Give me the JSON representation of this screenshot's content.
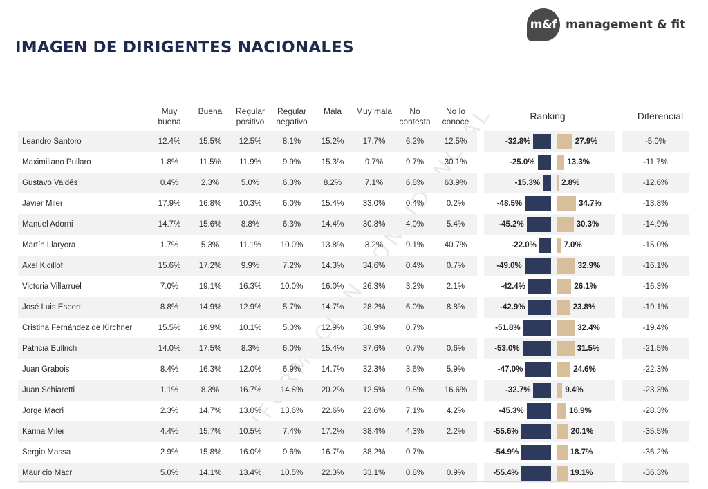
{
  "brand": {
    "mark": "m&f",
    "name": "management & fit"
  },
  "title": "IMAGEN DE DIRIGENTES NACIONALES",
  "watermark": "INFORMACIÓN CONFIDENCIAL",
  "colors": {
    "negative_bar": "#2e3a5c",
    "positive_bar": "#d8bf9b",
    "title": "#1f2a4f"
  },
  "columns": [
    "Muy buena",
    "Buena",
    "Regular positivo",
    "Regular negativo",
    "Mala",
    "Muy mala",
    "No contesta",
    "No lo conoce"
  ],
  "section_headers": {
    "ranking": "Ranking",
    "diferencial": "Diferencial"
  },
  "chart_data": {
    "type": "table",
    "title": "IMAGEN DE DIRIGENTES NACIONALES",
    "columns": [
      "Muy buena",
      "Buena",
      "Regular positivo",
      "Regular negativo",
      "Mala",
      "Muy mala",
      "No contesta",
      "No lo conoce",
      "Ranking negativo",
      "Ranking positivo",
      "Diferencial"
    ],
    "rows": [
      {
        "name": "Leandro Santoro",
        "values": [
          "12.4%",
          "15.5%",
          "12.5%",
          "8.1%",
          "15.2%",
          "17.7%",
          "6.2%",
          "12.5%"
        ],
        "neg": "-32.8%",
        "pos": "27.9%",
        "neg_val": -32.8,
        "pos_val": 27.9,
        "diff": "-5.0%"
      },
      {
        "name": "Maximiliano Pullaro",
        "values": [
          "1.8%",
          "11.5%",
          "11.9%",
          "9.9%",
          "15.3%",
          "9.7%",
          "9.7%",
          "30.1%"
        ],
        "neg": "-25.0%",
        "pos": "13.3%",
        "neg_val": -25.0,
        "pos_val": 13.3,
        "diff": "-11.7%"
      },
      {
        "name": "Gustavo Valdés",
        "values": [
          "0.4%",
          "2.3%",
          "5.0%",
          "6.3%",
          "8.2%",
          "7.1%",
          "6.8%",
          "63.9%"
        ],
        "neg": "-15.3%",
        "pos": "2.8%",
        "neg_val": -15.3,
        "pos_val": 2.8,
        "diff": "-12.6%"
      },
      {
        "name": "Javier Milei",
        "values": [
          "17.9%",
          "16.8%",
          "10.3%",
          "6.0%",
          "15.4%",
          "33.0%",
          "0.4%",
          "0.2%"
        ],
        "neg": "-48.5%",
        "pos": "34.7%",
        "neg_val": -48.5,
        "pos_val": 34.7,
        "diff": "-13.8%"
      },
      {
        "name": "Manuel Adorni",
        "values": [
          "14.7%",
          "15.6%",
          "8.8%",
          "6.3%",
          "14.4%",
          "30.8%",
          "4.0%",
          "5.4%"
        ],
        "neg": "-45.2%",
        "pos": "30.3%",
        "neg_val": -45.2,
        "pos_val": 30.3,
        "diff": "-14.9%"
      },
      {
        "name": "Martín Llaryora",
        "values": [
          "1.7%",
          "5.3%",
          "11.1%",
          "10.0%",
          "13.8%",
          "8.2%",
          "9.1%",
          "40.7%"
        ],
        "neg": "-22.0%",
        "pos": "7.0%",
        "neg_val": -22.0,
        "pos_val": 7.0,
        "diff": "-15.0%"
      },
      {
        "name": "Axel Kicillof",
        "values": [
          "15.6%",
          "17.2%",
          "9.9%",
          "7.2%",
          "14.3%",
          "34.6%",
          "0.4%",
          "0.7%"
        ],
        "neg": "-49.0%",
        "pos": "32.9%",
        "neg_val": -49.0,
        "pos_val": 32.9,
        "diff": "-16.1%"
      },
      {
        "name": "Victoria Villarruel",
        "values": [
          "7.0%",
          "19.1%",
          "16.3%",
          "10.0%",
          "16.0%",
          "26.3%",
          "3.2%",
          "2.1%"
        ],
        "neg": "-42.4%",
        "pos": "26.1%",
        "neg_val": -42.4,
        "pos_val": 26.1,
        "diff": "-16.3%"
      },
      {
        "name": "José Luis Espert",
        "values": [
          "8.8%",
          "14.9%",
          "12.9%",
          "5.7%",
          "14.7%",
          "28.2%",
          "6.0%",
          "8.8%"
        ],
        "neg": "-42.9%",
        "pos": "23.8%",
        "neg_val": -42.9,
        "pos_val": 23.8,
        "diff": "-19.1%"
      },
      {
        "name": "Cristina Fernández de Kirchner",
        "values": [
          "15.5%",
          "16.9%",
          "10.1%",
          "5.0%",
          "12.9%",
          "38.9%",
          "0.7%",
          ""
        ],
        "neg": "-51.8%",
        "pos": "32.4%",
        "neg_val": -51.8,
        "pos_val": 32.4,
        "diff": "-19.4%"
      },
      {
        "name": "Patricia Bullrich",
        "values": [
          "14.0%",
          "17.5%",
          "8.3%",
          "6.0%",
          "15.4%",
          "37.6%",
          "0.7%",
          "0.6%"
        ],
        "neg": "-53.0%",
        "pos": "31.5%",
        "neg_val": -53.0,
        "pos_val": 31.5,
        "diff": "-21.5%"
      },
      {
        "name": "Juan Grabois",
        "values": [
          "8.4%",
          "16.3%",
          "12.0%",
          "6.9%",
          "14.7%",
          "32.3%",
          "3.6%",
          "5.9%"
        ],
        "neg": "-47.0%",
        "pos": "24.6%",
        "neg_val": -47.0,
        "pos_val": 24.6,
        "diff": "-22.3%"
      },
      {
        "name": "Juan Schiaretti",
        "values": [
          "1.1%",
          "8.3%",
          "16.7%",
          "14.8%",
          "20.2%",
          "12.5%",
          "9.8%",
          "16.6%"
        ],
        "neg": "-32.7%",
        "pos": "9.4%",
        "neg_val": -32.7,
        "pos_val": 9.4,
        "diff": "-23.3%"
      },
      {
        "name": "Jorge Macri",
        "values": [
          "2.3%",
          "14.7%",
          "13.0%",
          "13.6%",
          "22.6%",
          "22.6%",
          "7.1%",
          "4.2%"
        ],
        "neg": "-45.3%",
        "pos": "16.9%",
        "neg_val": -45.3,
        "pos_val": 16.9,
        "diff": "-28.3%"
      },
      {
        "name": "Karina Milei",
        "values": [
          "4.4%",
          "15.7%",
          "10.5%",
          "7.4%",
          "17.2%",
          "38.4%",
          "4.3%",
          "2.2%"
        ],
        "neg": "-55.6%",
        "pos": "20.1%",
        "neg_val": -55.6,
        "pos_val": 20.1,
        "diff": "-35.5%"
      },
      {
        "name": "Sergio Massa",
        "values": [
          "2.9%",
          "15.8%",
          "16.0%",
          "9.6%",
          "16.7%",
          "38.2%",
          "0.7%",
          ""
        ],
        "neg": "-54.9%",
        "pos": "18.7%",
        "neg_val": -54.9,
        "pos_val": 18.7,
        "diff": "-36.2%"
      },
      {
        "name": "Mauricio Macri",
        "values": [
          "5.0%",
          "14.1%",
          "13.4%",
          "10.5%",
          "22.3%",
          "33.1%",
          "0.8%",
          "0.9%"
        ],
        "neg": "-55.4%",
        "pos": "19.1%",
        "neg_val": -55.4,
        "pos_val": 19.1,
        "diff": "-36.3%"
      }
    ]
  }
}
